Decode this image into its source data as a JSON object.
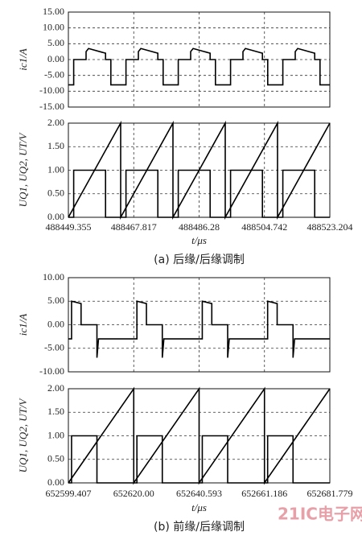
{
  "chart_data": [
    {
      "type": "line",
      "ylabel": "ic1/A",
      "grid": true,
      "ylim": [
        -15,
        15
      ],
      "yticks": [
        {
          "value": 15,
          "label": "15.00"
        },
        {
          "value": 10,
          "label": "10.00"
        },
        {
          "value": 5,
          "label": "5.00"
        },
        {
          "value": 0,
          "label": "0.00"
        },
        {
          "value": -5,
          "label": "-5.00"
        },
        {
          "value": -10,
          "label": "-10.00"
        },
        {
          "value": -15,
          "label": "-15.00"
        }
      ],
      "xlim": [
        488449.355,
        488523.204
      ],
      "xticks": [
        488449.355,
        488467.817,
        488486.28,
        488504.742,
        488523.204
      ],
      "series": [
        {
          "color": "#000000",
          "x": [
            488449.355,
            488450.855,
            488450.855,
            488454.355,
            488454.355,
            488455.055,
            488459.855,
            488459.855,
            488461.355,
            488461.355,
            488465.625,
            488465.625,
            488469.125,
            488469.125,
            488469.825,
            488474.625,
            488474.625,
            488476.125,
            488476.125,
            488480.395,
            488480.395,
            488483.895,
            488483.895,
            488484.595,
            488489.395,
            488489.395,
            488490.895,
            488490.895,
            488495.165,
            488495.165,
            488498.665,
            488498.665,
            488499.365,
            488504.165,
            488504.165,
            488505.665,
            488505.665,
            488509.935,
            488509.935,
            488513.435,
            488513.435,
            488514.135,
            488518.935,
            488518.935,
            488520.435,
            488520.435,
            488523.204
          ],
          "values": [
            -8,
            -8,
            0,
            0,
            2.5,
            3.5,
            2,
            0,
            0,
            -8,
            -8,
            0,
            0,
            2.5,
            3.5,
            2,
            0,
            0,
            -8,
            -8,
            0,
            0,
            2.5,
            3.5,
            2,
            0,
            0,
            -8,
            -8,
            0,
            0,
            2.5,
            3.5,
            2,
            0,
            0,
            -8,
            -8,
            0,
            0,
            2.5,
            3.5,
            2,
            0,
            0,
            -8,
            -8
          ]
        }
      ]
    },
    {
      "type": "line",
      "ylabel": "UQ1, UQ2, UT/V",
      "xlabel": "t/μs",
      "caption": "(a) 后缘/后缘调制",
      "grid": true,
      "ylim": [
        0,
        2
      ],
      "yticks": [
        {
          "value": 2,
          "label": "2.00"
        },
        {
          "value": 1.5,
          "label": "1.50"
        },
        {
          "value": 1,
          "label": "1.00"
        },
        {
          "value": 0.5,
          "label": "0.50"
        },
        {
          "value": 0,
          "label": "0.00"
        }
      ],
      "xlim": [
        488449.355,
        488523.204
      ],
      "xticks": [
        488449.355,
        488467.817,
        488486.28,
        488504.742,
        488523.204
      ],
      "series": [
        {
          "color": "#000000",
          "x": [
            488449.355,
            488464.125,
            488464.125,
            488478.895,
            488478.895,
            488493.665,
            488493.665,
            488508.435,
            488508.435,
            488523.204
          ],
          "values": [
            0,
            2,
            0,
            2,
            0,
            2,
            0,
            2,
            0,
            2
          ]
        },
        {
          "color": "#000000",
          "x": [
            488449.355,
            488450.855,
            488450.855,
            488459.855,
            488459.855,
            488465.625,
            488465.625,
            488474.625,
            488474.625,
            488480.395,
            488480.395,
            488489.395,
            488489.395,
            488495.165,
            488495.165,
            488504.165,
            488504.165,
            488509.935,
            488509.935,
            488518.935,
            488518.935,
            488523.204
          ],
          "values": [
            0,
            0,
            1,
            1,
            0,
            0,
            1,
            1,
            0,
            0,
            1,
            1,
            0,
            0,
            1,
            1,
            0,
            0,
            1,
            1,
            0,
            0
          ]
        }
      ]
    },
    {
      "type": "line",
      "ylabel": "ic1/A",
      "grid": true,
      "ylim": [
        -10,
        10
      ],
      "yticks": [
        {
          "value": 10,
          "label": "10.00"
        },
        {
          "value": 5,
          "label": "5.00"
        },
        {
          "value": 0,
          "label": "0.00"
        },
        {
          "value": -5,
          "label": "-5.00"
        },
        {
          "value": -10,
          "label": "-10.00"
        }
      ],
      "xlim": [
        652599.407,
        652681.779
      ],
      "xticks": [
        652599.407,
        652620,
        652640.593,
        652661.186,
        652681.779
      ],
      "series": [
        {
          "color": "#000000",
          "x": [
            652599.407,
            652600.407,
            652600.407,
            652603.407,
            652603.407,
            652608.407,
            652608.407,
            652608.907,
            652621,
            652621,
            652624,
            652624,
            652629,
            652629,
            652629.5,
            652641.593,
            652641.593,
            652644.593,
            652644.593,
            652649.593,
            652649.593,
            652650.093,
            652662.186,
            652662.186,
            652665.186,
            652665.186,
            652670.186,
            652670.186,
            652670.686,
            652681.779
          ],
          "values": [
            -3,
            -3,
            5,
            4.5,
            0,
            0,
            -7,
            -3,
            -3,
            5,
            4.5,
            0,
            0,
            -7,
            -3,
            -3,
            5,
            4.5,
            0,
            0,
            -7,
            -3,
            -3,
            5,
            4.5,
            0,
            0,
            -7,
            -3,
            -3
          ]
        }
      ]
    },
    {
      "type": "line",
      "ylabel": "UQ1, UQ2, UT/V",
      "xlabel": "t/μs",
      "caption": "(b) 前缘/后缘调制",
      "grid": true,
      "ylim": [
        0,
        2
      ],
      "yticks": [
        {
          "value": 2,
          "label": "2.00"
        },
        {
          "value": 1.5,
          "label": "1.50"
        },
        {
          "value": 1,
          "label": "1.00"
        },
        {
          "value": 0.5,
          "label": "0.50"
        },
        {
          "value": 0,
          "label": "0.00"
        }
      ],
      "xlim": [
        652599.407,
        652681.779
      ],
      "xticks": [
        652599.407,
        {
          "value": 652620,
          "label": "652620.00"
        },
        652640.593,
        652661.186,
        652681.779
      ],
      "series": [
        {
          "color": "#000000",
          "x": [
            652599.407,
            652620,
            652620,
            652640.593,
            652640.593,
            652661.186,
            652661.186,
            652681.779
          ],
          "values": [
            0,
            2,
            0,
            2,
            0,
            2,
            0,
            2
          ]
        },
        {
          "color": "#000000",
          "x": [
            652599.407,
            652600.407,
            652600.407,
            652608.407,
            652608.407,
            652621,
            652621,
            652629,
            652629,
            652641.593,
            652641.593,
            652649.593,
            652649.593,
            652662.186,
            652662.186,
            652670.186,
            652670.186,
            652681.779
          ],
          "values": [
            0,
            0,
            1,
            1,
            0,
            0,
            1,
            1,
            0,
            0,
            1,
            1,
            0,
            0,
            1,
            1,
            0,
            0
          ]
        }
      ]
    }
  ],
  "watermark": "21IC电子网"
}
